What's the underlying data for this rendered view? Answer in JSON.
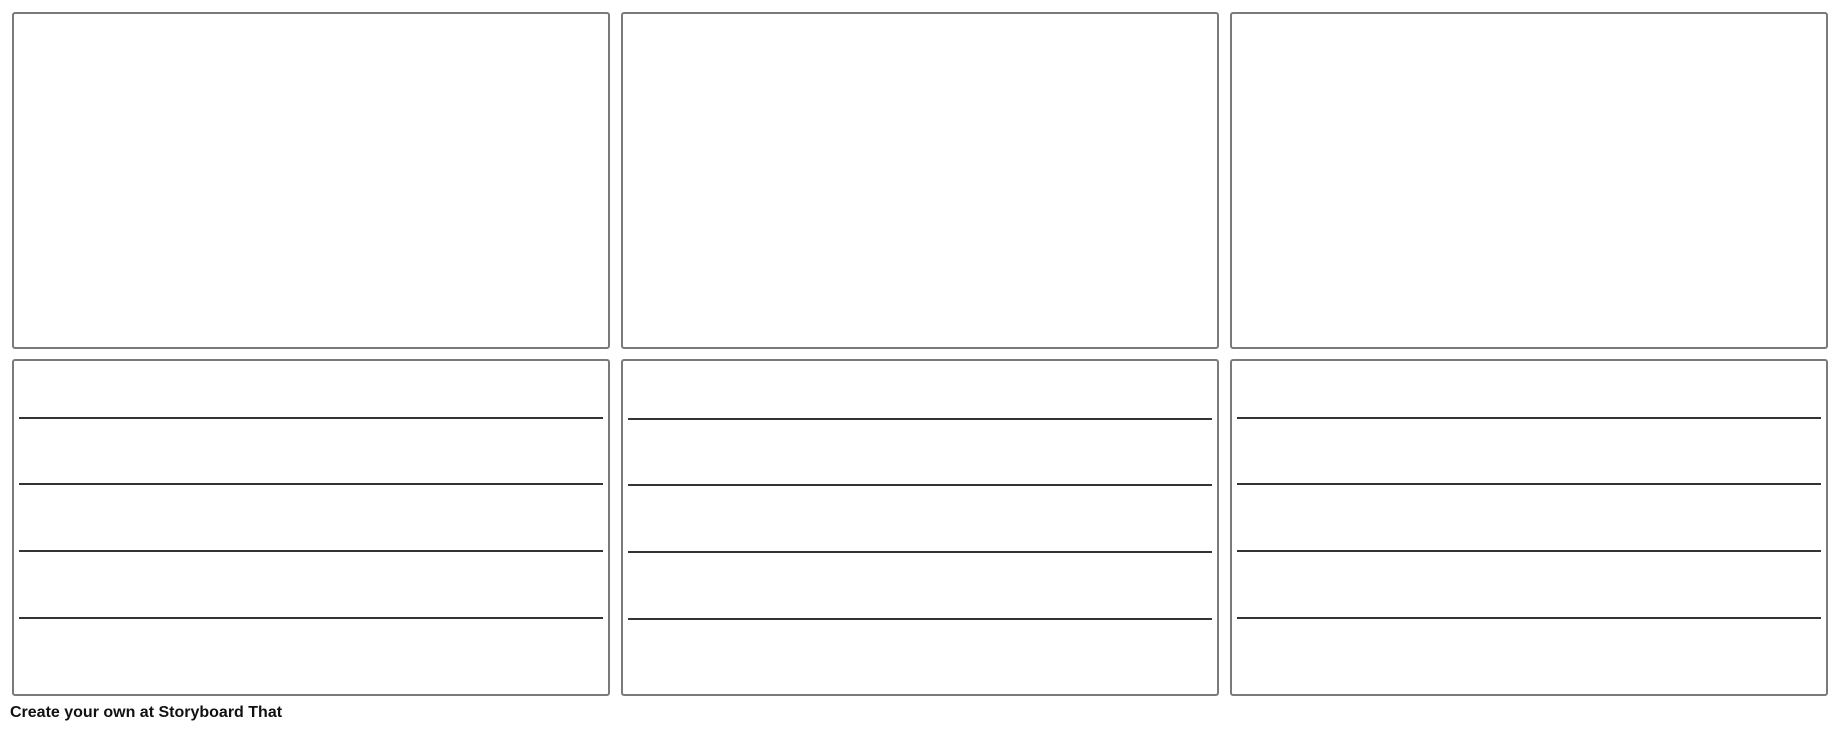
{
  "footer": {
    "text": "Create your own at Storyboard That"
  }
}
